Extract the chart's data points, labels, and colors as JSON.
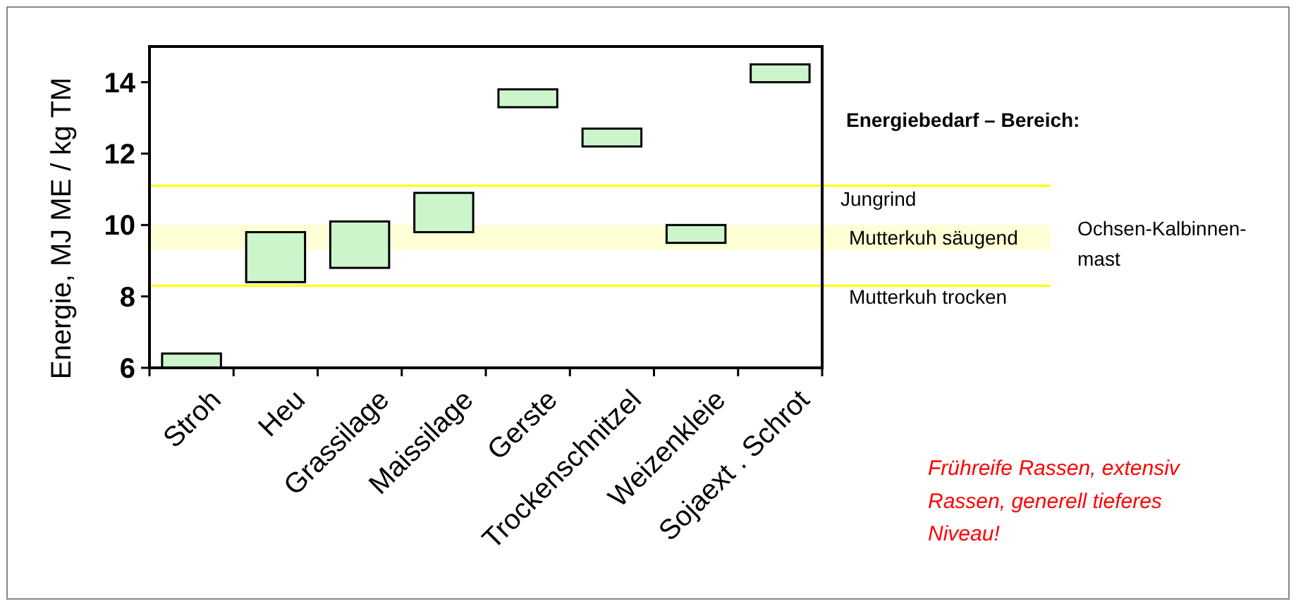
{
  "chart_data": {
    "type": "bar",
    "categories": [
      "Stroh",
      "Heu",
      "Grassilage",
      "Maissilage",
      "Gerste",
      "Trockenschnitzel",
      "Weizenkleie",
      "Sojaext . Schrot"
    ],
    "base": [
      6.0,
      8.4,
      8.8,
      9.8,
      13.3,
      12.2,
      9.5,
      14.0
    ],
    "values": [
      0.4,
      1.4,
      1.3,
      1.1,
      0.5,
      0.5,
      0.5,
      0.5
    ],
    "color": "#ccf5cc",
    "ylabel": "Energie, MJ ME / kg TM",
    "ylim": [
      6,
      15
    ],
    "yticks": [
      6,
      8,
      10,
      12,
      14
    ],
    "grid": false,
    "ref_lines": [
      {
        "axis": "y",
        "value": 11.1,
        "label": "Jungrind",
        "color": "#ffff00"
      },
      {
        "axis": "y",
        "value": 8.3,
        "label": "Mutterkuh trocken",
        "color": "#ffff00"
      }
    ],
    "bands": [
      {
        "axis": "y",
        "from": 9.3,
        "to": 10.0,
        "label": "Mutterkuh säugend",
        "color": "#ffffcc"
      }
    ],
    "annotations": [
      "Energiebedarf – Bereich:",
      "Ochsen-Kalbinnen-mast",
      "Frühreife Rassen, extensiv Rassen, generell tieferes Niveau!"
    ]
  }
}
